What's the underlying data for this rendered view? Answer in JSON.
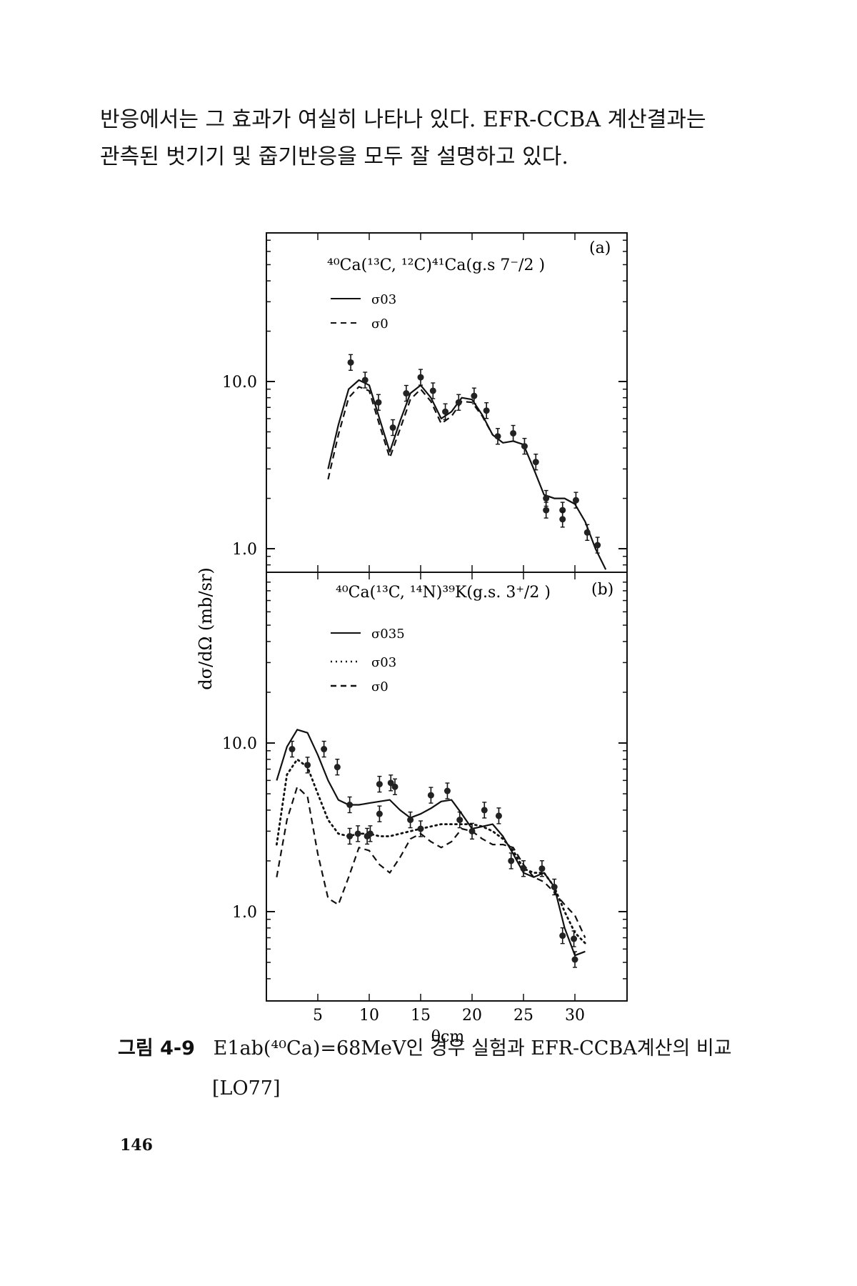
{
  "paragraph": {
    "line1": "반응에서는 그 효과가 여실히 나타나 있다. EFR-CCBA 계산결과는",
    "line2": "관측된 벗기기 및 줍기반응을 모두 잘 설명하고 있다."
  },
  "figure": {
    "ylabel": "dσ/dΩ (mb/sr)",
    "xlabel": "θcm",
    "x_ticks": [
      "5",
      "10",
      "15",
      "20",
      "25",
      "30"
    ],
    "panel_a": {
      "tag": "(a)",
      "title": "⁴⁰Ca(¹³C, ¹²C)⁴¹Ca(g.s 7⁻/2 )",
      "y_ticks": [
        "10.0",
        "1.0"
      ],
      "legend": [
        "σ03",
        "σ0"
      ]
    },
    "panel_b": {
      "tag": "(b)",
      "title": "⁴⁰Ca(¹³C, ¹⁴N)³⁹K(g.s. 3⁺/2 )",
      "y_ticks": [
        "10.0",
        "1.0"
      ],
      "legend": [
        "σ035",
        "σ03",
        "σ0"
      ]
    }
  },
  "chart_data": [
    {
      "type": "scatter",
      "title": "⁴⁰Ca(¹³C, ¹²C)⁴¹Ca(g.s 7⁻/2 )",
      "panel": "(a)",
      "xlabel": "θcm",
      "ylabel": "dσ/dΩ (mb/sr)",
      "y_scale": "log",
      "xlim": [
        0,
        35
      ],
      "ylim": [
        0.75,
        50
      ],
      "points": [
        [
          8.2,
          13.0
        ],
        [
          9.6,
          10.2
        ],
        [
          10.9,
          7.5
        ],
        [
          12.3,
          5.3
        ],
        [
          13.6,
          8.5
        ],
        [
          15.0,
          10.6
        ],
        [
          16.2,
          8.8
        ],
        [
          17.4,
          6.6
        ],
        [
          18.7,
          7.5
        ],
        [
          20.2,
          8.2
        ],
        [
          21.4,
          6.7
        ],
        [
          22.5,
          4.7
        ],
        [
          24.0,
          4.9
        ],
        [
          25.1,
          4.1
        ],
        [
          26.2,
          3.3
        ],
        [
          27.2,
          2.0
        ],
        [
          27.2,
          1.7
        ],
        [
          28.8,
          1.7
        ],
        [
          28.8,
          1.5
        ],
        [
          30.1,
          1.95
        ],
        [
          31.2,
          1.25
        ],
        [
          32.2,
          1.05
        ]
      ],
      "series": [
        {
          "name": "σ03",
          "style": "solid",
          "x": [
            6.0,
            7.0,
            8.0,
            9.0,
            10.0,
            11.0,
            12.0,
            13.0,
            14.0,
            15.0,
            16.0,
            17.0,
            18.0,
            19.0,
            20.0,
            21.0,
            22.0,
            23.0,
            24.0,
            25.0,
            26.0,
            27.0,
            28.0,
            29.0,
            30.0,
            31.0,
            32.0,
            33.0
          ],
          "y": [
            3.0,
            5.5,
            9.0,
            10.2,
            9.5,
            6.0,
            3.8,
            5.8,
            8.5,
            9.5,
            8.0,
            6.0,
            6.6,
            8.0,
            7.8,
            6.3,
            4.8,
            4.3,
            4.4,
            4.2,
            3.0,
            2.1,
            2.0,
            2.0,
            1.85,
            1.45,
            1.0,
            0.75
          ]
        },
        {
          "name": "σ0",
          "style": "dashed",
          "x": [
            6.0,
            7.0,
            8.0,
            9.0,
            10.0,
            11.0,
            12.0,
            13.0,
            14.0,
            15.0,
            16.0,
            17.0,
            18.0,
            19.0,
            20.0,
            21.0,
            22.0
          ],
          "y": [
            2.6,
            4.8,
            8.0,
            9.3,
            8.8,
            5.5,
            3.5,
            5.2,
            7.8,
            9.0,
            7.6,
            5.6,
            6.2,
            7.6,
            7.5,
            6.2,
            4.8
          ]
        }
      ]
    },
    {
      "type": "scatter",
      "title": "⁴⁰Ca(¹³C, ¹⁴N)³⁹K(g.s. 3⁺/2 )",
      "panel": "(b)",
      "xlabel": "θcm",
      "ylabel": "dσ/dΩ (mb/sr)",
      "y_scale": "log",
      "xlim": [
        0,
        35
      ],
      "ylim": [
        0.35,
        80
      ],
      "x_ticks": [
        5,
        10,
        15,
        20,
        25,
        30
      ],
      "points": [
        [
          2.5,
          9.2
        ],
        [
          4.0,
          7.4
        ],
        [
          5.6,
          9.2
        ],
        [
          6.9,
          7.2
        ],
        [
          8.1,
          4.3
        ],
        [
          8.1,
          2.8
        ],
        [
          8.9,
          2.9
        ],
        [
          9.8,
          2.8
        ],
        [
          10.1,
          2.9
        ],
        [
          11.0,
          5.7
        ],
        [
          11.0,
          3.8
        ],
        [
          12.1,
          5.8
        ],
        [
          12.5,
          5.5
        ],
        [
          14.0,
          3.5
        ],
        [
          15.0,
          3.1
        ],
        [
          16.0,
          4.9
        ],
        [
          17.6,
          5.2
        ],
        [
          18.8,
          3.5
        ],
        [
          20.0,
          3.0
        ],
        [
          21.2,
          4.0
        ],
        [
          22.6,
          3.7
        ],
        [
          23.8,
          2.0
        ],
        [
          25.0,
          1.8
        ],
        [
          26.8,
          1.8
        ],
        [
          28.0,
          1.4
        ],
        [
          28.8,
          0.72
        ],
        [
          29.9,
          0.69
        ],
        [
          30.0,
          0.52
        ]
      ],
      "series": [
        {
          "name": "σ035",
          "style": "solid",
          "x": [
            1.0,
            2.0,
            3.0,
            4.0,
            5.0,
            6.0,
            7.0,
            8.0,
            9.0,
            10.0,
            11.0,
            12.0,
            13.0,
            14.0,
            15.0,
            16.0,
            17.0,
            18.0,
            19.0,
            20.0,
            21.0,
            22.0,
            23.0,
            24.0,
            25.0,
            26.0,
            27.0,
            28.0,
            29.0,
            30.0,
            31.0
          ],
          "y": [
            6.0,
            9.5,
            12.0,
            11.5,
            8.5,
            6.0,
            4.6,
            4.3,
            4.3,
            4.4,
            4.5,
            4.6,
            4.0,
            3.6,
            3.8,
            4.1,
            4.5,
            4.6,
            3.8,
            3.1,
            3.2,
            3.3,
            2.8,
            2.2,
            1.7,
            1.6,
            1.7,
            1.4,
            0.8,
            0.55,
            0.58
          ]
        },
        {
          "name": "σ03",
          "style": "dotted",
          "x": [
            1.0,
            2.0,
            3.0,
            4.0,
            5.0,
            6.0,
            7.0,
            8.0,
            9.0,
            10.0,
            11.0,
            12.0,
            13.0,
            14.0,
            15.0,
            16.0,
            17.0,
            18.0,
            19.0,
            20.0,
            21.0,
            22.0,
            23.0,
            24.0,
            25.0,
            26.0,
            27.0,
            28.0,
            29.0,
            30.0,
            31.0
          ],
          "y": [
            2.5,
            6.5,
            8.0,
            7.2,
            5.0,
            3.5,
            2.9,
            2.8,
            2.9,
            2.9,
            2.8,
            2.8,
            2.9,
            3.0,
            3.1,
            3.2,
            3.3,
            3.3,
            3.3,
            3.3,
            3.2,
            3.0,
            2.7,
            2.3,
            1.8,
            1.7,
            1.7,
            1.4,
            1.0,
            0.75,
            0.65
          ]
        },
        {
          "name": "σ0",
          "style": "dashed",
          "x": [
            1.0,
            2.0,
            3.0,
            4.0,
            5.0,
            6.0,
            7.0,
            8.0,
            9.0,
            10.0,
            11.0,
            12.0,
            13.0,
            14.0,
            15.0,
            16.0,
            17.0,
            18.0,
            19.0,
            20.0,
            21.0,
            22.0,
            23.0,
            24.0,
            25.0,
            26.0,
            27.0,
            28.0,
            29.0,
            30.0,
            31.0
          ],
          "y": [
            1.6,
            3.5,
            5.5,
            4.8,
            2.2,
            1.2,
            1.1,
            1.6,
            2.4,
            2.3,
            1.9,
            1.7,
            2.1,
            2.7,
            2.9,
            2.6,
            2.4,
            2.6,
            3.1,
            3.0,
            2.7,
            2.5,
            2.5,
            2.4,
            1.9,
            1.6,
            1.5,
            1.3,
            1.1,
            0.95,
            0.7
          ]
        }
      ]
    }
  ],
  "caption": {
    "label": "그림 4-9",
    "text": "E1ab(⁴⁰Ca)=68MeV인 경우 실험과 EFR-CCBA계산의 비교",
    "ref": "[LO77]"
  },
  "page_number": "146"
}
